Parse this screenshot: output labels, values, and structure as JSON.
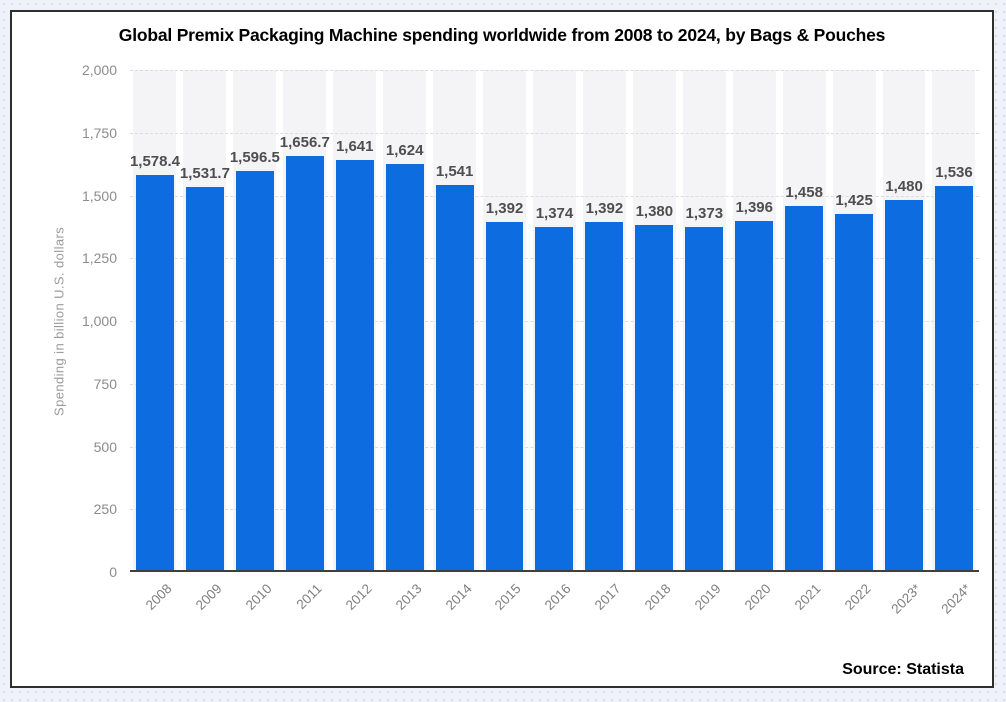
{
  "page": {
    "background_color": "#eff2f8",
    "box_border_color": "#2e2e2e"
  },
  "chart_data": {
    "type": "bar",
    "title": "Global Premix Packaging Machine spending worldwide from 2008 to 2024, by Bags & Pouches",
    "xlabel": "",
    "ylabel": "Spending in billion U.S. dollars",
    "ylim": [
      0,
      2000
    ],
    "y_ticks": [
      0,
      250,
      500,
      750,
      1000,
      1250,
      1500,
      1750,
      2000
    ],
    "y_tick_labels": [
      "0",
      "250",
      "500",
      "750",
      "1,000",
      "1,250",
      "1,500",
      "1,750",
      "2,000"
    ],
    "grid": "horizontal dotted gridlines, no vertical gridlines",
    "legend": "none",
    "bar_color": "#0d6ce0",
    "column_band_color": "#f4f4f6",
    "categories": [
      "2008",
      "2009",
      "2010",
      "2011",
      "2012",
      "2013",
      "2014",
      "2015",
      "2016",
      "2017",
      "2018",
      "2019",
      "2020",
      "2021",
      "2022",
      "2023*",
      "2024*"
    ],
    "values": [
      1578.4,
      1531.7,
      1596.5,
      1656.7,
      1641,
      1624,
      1541,
      1392,
      1374,
      1392,
      1380,
      1373,
      1396,
      1458,
      1425,
      1480,
      1536
    ],
    "value_labels": [
      "1,578.4",
      "1,531.7",
      "1,596.5",
      "1,656.7",
      "1,641",
      "1,624",
      "1,541",
      "1,392",
      "1,374",
      "1,392",
      "1,380",
      "1,373",
      "1,396",
      "1,458",
      "1,425",
      "1,480",
      "1,536"
    ]
  },
  "footer": {
    "source": "Source: Statista"
  }
}
